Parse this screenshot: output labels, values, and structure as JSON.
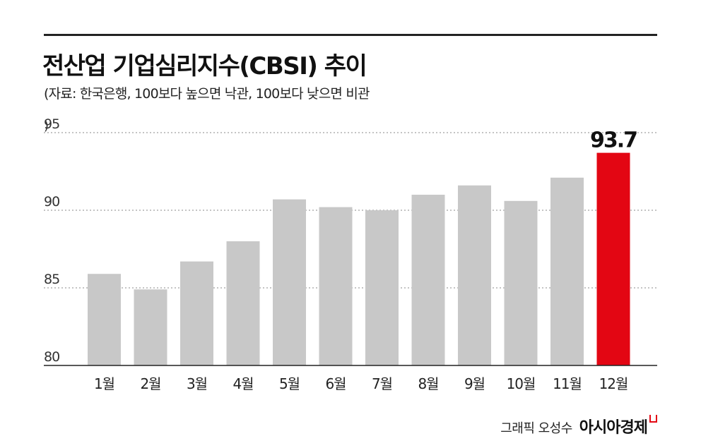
{
  "header": {
    "title": "전산업 기업심리지수(CBSI) 추이",
    "subtitle": "(자료: 한국은행, 100보다 높으면 낙관, 100보다 낮으면 비관",
    "unit_mark": ")"
  },
  "chart_data": {
    "type": "bar",
    "title": "전산업 기업심리지수(CBSI) 추이",
    "categories": [
      "1월",
      "2월",
      "3월",
      "4월",
      "5월",
      "6월",
      "7월",
      "8월",
      "9월",
      "10월",
      "11월",
      "12월"
    ],
    "series": [
      {
        "values": [
          85.9,
          84.9,
          86.7,
          88.0,
          90.7,
          90.2,
          90.0,
          91.0,
          91.6,
          90.6,
          92.1,
          93.7
        ]
      }
    ],
    "ylim": [
      80,
      95
    ],
    "yticks": [
      80,
      85,
      90,
      95
    ],
    "grid": true,
    "highlight": {
      "index": 11,
      "label": "93.7"
    },
    "colors": {
      "bar": "#c8c8c8",
      "highlight": "#e30613",
      "grid": "#888888",
      "axis": "#222222"
    }
  },
  "footer": {
    "credit": "그래픽 오성수",
    "brand": "아시아경제"
  }
}
